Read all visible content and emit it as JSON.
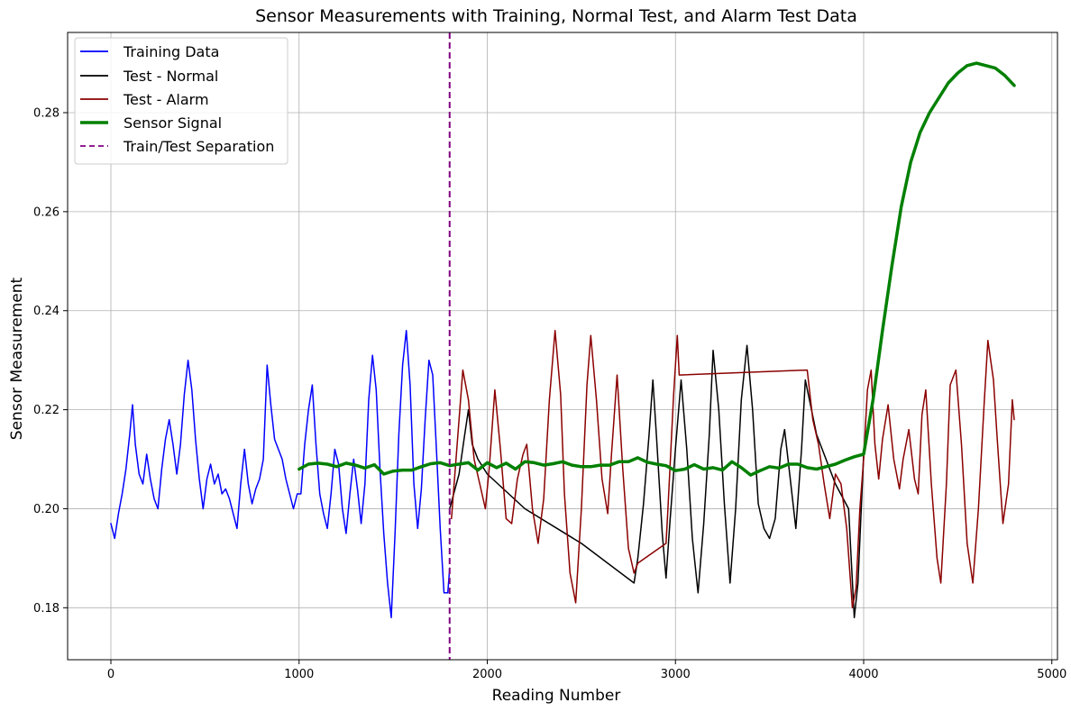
{
  "chart_data": {
    "type": "line",
    "title": "Sensor Measurements with Training, Normal Test, and Alarm Test Data",
    "xlabel": "Reading Number",
    "ylabel": "Sensor Measurement",
    "xlim": [
      -230,
      5030
    ],
    "ylim": [
      0.1695,
      0.2962
    ],
    "xticks": [
      0,
      1000,
      2000,
      3000,
      4000,
      5000
    ],
    "xtick_labels": [
      "0",
      "1000",
      "2000",
      "3000",
      "4000",
      "5000"
    ],
    "yticks": [
      0.18,
      0.2,
      0.22,
      0.24,
      0.26,
      0.28
    ],
    "ytick_labels": [
      "0.18",
      "0.20",
      "0.22",
      "0.24",
      "0.26",
      "0.28"
    ],
    "grid": true,
    "legend_position": "upper-left",
    "separator": {
      "name": "Train/Test Separation",
      "x": 1800,
      "color": "#800080",
      "style": "dashed"
    },
    "series": [
      {
        "name": "Training Data",
        "color": "#0000ff",
        "width": 1.5,
        "points": [
          [
            0,
            0.197
          ],
          [
            20,
            0.194
          ],
          [
            40,
            0.199
          ],
          [
            60,
            0.203
          ],
          [
            80,
            0.208
          ],
          [
            100,
            0.215
          ],
          [
            115,
            0.221
          ],
          [
            130,
            0.213
          ],
          [
            150,
            0.207
          ],
          [
            170,
            0.205
          ],
          [
            190,
            0.211
          ],
          [
            210,
            0.206
          ],
          [
            230,
            0.202
          ],
          [
            250,
            0.2
          ],
          [
            270,
            0.208
          ],
          [
            290,
            0.214
          ],
          [
            310,
            0.218
          ],
          [
            330,
            0.213
          ],
          [
            350,
            0.207
          ],
          [
            370,
            0.213
          ],
          [
            390,
            0.223
          ],
          [
            410,
            0.23
          ],
          [
            430,
            0.224
          ],
          [
            450,
            0.214
          ],
          [
            470,
            0.206
          ],
          [
            490,
            0.2
          ],
          [
            510,
            0.206
          ],
          [
            530,
            0.209
          ],
          [
            550,
            0.205
          ],
          [
            570,
            0.207
          ],
          [
            590,
            0.203
          ],
          [
            610,
            0.204
          ],
          [
            630,
            0.202
          ],
          [
            650,
            0.199
          ],
          [
            670,
            0.196
          ],
          [
            690,
            0.205
          ],
          [
            710,
            0.212
          ],
          [
            730,
            0.205
          ],
          [
            750,
            0.201
          ],
          [
            770,
            0.204
          ],
          [
            790,
            0.206
          ],
          [
            810,
            0.21
          ],
          [
            830,
            0.229
          ],
          [
            850,
            0.221
          ],
          [
            870,
            0.214
          ],
          [
            890,
            0.212
          ],
          [
            910,
            0.21
          ],
          [
            930,
            0.206
          ],
          [
            950,
            0.203
          ],
          [
            970,
            0.2
          ],
          [
            990,
            0.203
          ],
          [
            1010,
            0.203
          ],
          [
            1030,
            0.213
          ],
          [
            1050,
            0.22
          ],
          [
            1070,
            0.225
          ],
          [
            1090,
            0.213
          ],
          [
            1110,
            0.203
          ],
          [
            1130,
            0.199
          ],
          [
            1150,
            0.196
          ],
          [
            1170,
            0.203
          ],
          [
            1190,
            0.212
          ],
          [
            1210,
            0.209
          ],
          [
            1230,
            0.2
          ],
          [
            1250,
            0.195
          ],
          [
            1270,
            0.203
          ],
          [
            1290,
            0.21
          ],
          [
            1310,
            0.204
          ],
          [
            1330,
            0.197
          ],
          [
            1350,
            0.205
          ],
          [
            1370,
            0.222
          ],
          [
            1390,
            0.231
          ],
          [
            1410,
            0.224
          ],
          [
            1430,
            0.208
          ],
          [
            1450,
            0.195
          ],
          [
            1470,
            0.185
          ],
          [
            1490,
            0.178
          ],
          [
            1510,
            0.195
          ],
          [
            1530,
            0.215
          ],
          [
            1550,
            0.229
          ],
          [
            1570,
            0.236
          ],
          [
            1590,
            0.225
          ],
          [
            1610,
            0.205
          ],
          [
            1630,
            0.196
          ],
          [
            1650,
            0.204
          ],
          [
            1670,
            0.218
          ],
          [
            1690,
            0.23
          ],
          [
            1710,
            0.227
          ],
          [
            1730,
            0.212
          ],
          [
            1750,
            0.196
          ],
          [
            1770,
            0.183
          ],
          [
            1790,
            0.183
          ],
          [
            1800,
            0.188
          ]
        ]
      },
      {
        "name": "Test - Normal",
        "color": "#000000",
        "width": 1.5,
        "points": [
          [
            1800,
            0.2
          ],
          [
            1850,
            0.207
          ],
          [
            1880,
            0.215
          ],
          [
            1900,
            0.22
          ],
          [
            1920,
            0.213
          ],
          [
            1950,
            0.21
          ],
          [
            2000,
            0.207
          ],
          [
            2200,
            0.2
          ],
          [
            2500,
            0.193
          ],
          [
            2780,
            0.185
          ],
          [
            2800,
            0.19
          ],
          [
            2830,
            0.201
          ],
          [
            2860,
            0.215
          ],
          [
            2880,
            0.226
          ],
          [
            2900,
            0.214
          ],
          [
            2930,
            0.195
          ],
          [
            2950,
            0.186
          ],
          [
            2970,
            0.197
          ],
          [
            3000,
            0.212
          ],
          [
            3030,
            0.226
          ],
          [
            3060,
            0.212
          ],
          [
            3090,
            0.194
          ],
          [
            3120,
            0.183
          ],
          [
            3150,
            0.197
          ],
          [
            3180,
            0.215
          ],
          [
            3200,
            0.232
          ],
          [
            3230,
            0.22
          ],
          [
            3260,
            0.201
          ],
          [
            3290,
            0.185
          ],
          [
            3320,
            0.2
          ],
          [
            3350,
            0.222
          ],
          [
            3380,
            0.233
          ],
          [
            3410,
            0.22
          ],
          [
            3440,
            0.201
          ],
          [
            3470,
            0.196
          ],
          [
            3500,
            0.194
          ],
          [
            3530,
            0.198
          ],
          [
            3560,
            0.212
          ],
          [
            3580,
            0.216
          ],
          [
            3610,
            0.206
          ],
          [
            3640,
            0.196
          ],
          [
            3670,
            0.212
          ],
          [
            3690,
            0.226
          ],
          [
            3750,
            0.215
          ],
          [
            3850,
            0.205
          ],
          [
            3920,
            0.2
          ],
          [
            3950,
            0.178
          ],
          [
            3970,
            0.185
          ],
          [
            4000,
            0.211
          ]
        ]
      },
      {
        "name": "Test - Alarm",
        "color": "#8b0000",
        "width": 1.5,
        "points": [
          [
            1810,
            0.198
          ],
          [
            1840,
            0.213
          ],
          [
            1870,
            0.228
          ],
          [
            1900,
            0.222
          ],
          [
            1930,
            0.21
          ],
          [
            1960,
            0.205
          ],
          [
            1990,
            0.2
          ],
          [
            2010,
            0.208
          ],
          [
            2040,
            0.224
          ],
          [
            2070,
            0.212
          ],
          [
            2100,
            0.198
          ],
          [
            2130,
            0.197
          ],
          [
            2160,
            0.206
          ],
          [
            2190,
            0.211
          ],
          [
            2210,
            0.213
          ],
          [
            2240,
            0.2
          ],
          [
            2270,
            0.193
          ],
          [
            2300,
            0.202
          ],
          [
            2330,
            0.222
          ],
          [
            2360,
            0.236
          ],
          [
            2390,
            0.223
          ],
          [
            2410,
            0.203
          ],
          [
            2440,
            0.187
          ],
          [
            2470,
            0.181
          ],
          [
            2500,
            0.2
          ],
          [
            2530,
            0.225
          ],
          [
            2550,
            0.235
          ],
          [
            2580,
            0.222
          ],
          [
            2610,
            0.206
          ],
          [
            2640,
            0.199
          ],
          [
            2660,
            0.211
          ],
          [
            2690,
            0.227
          ],
          [
            2720,
            0.208
          ],
          [
            2750,
            0.192
          ],
          [
            2780,
            0.187
          ],
          [
            2800,
            0.189
          ],
          [
            2950,
            0.193
          ],
          [
            2960,
            0.2
          ],
          [
            2990,
            0.223
          ],
          [
            3010,
            0.235
          ],
          [
            3020,
            0.227
          ],
          [
            3700,
            0.228
          ],
          [
            3730,
            0.218
          ],
          [
            3760,
            0.213
          ],
          [
            3790,
            0.205
          ],
          [
            3820,
            0.198
          ],
          [
            3850,
            0.207
          ],
          [
            3880,
            0.205
          ],
          [
            3910,
            0.196
          ],
          [
            3940,
            0.18
          ],
          [
            3960,
            0.184
          ],
          [
            3980,
            0.2
          ],
          [
            4000,
            0.21
          ],
          [
            4020,
            0.224
          ],
          [
            4040,
            0.228
          ],
          [
            4060,
            0.213
          ],
          [
            4080,
            0.206
          ],
          [
            4100,
            0.214
          ],
          [
            4130,
            0.221
          ],
          [
            4160,
            0.21
          ],
          [
            4190,
            0.204
          ],
          [
            4210,
            0.21
          ],
          [
            4240,
            0.216
          ],
          [
            4270,
            0.206
          ],
          [
            4290,
            0.203
          ],
          [
            4310,
            0.219
          ],
          [
            4330,
            0.224
          ],
          [
            4360,
            0.205
          ],
          [
            4390,
            0.19
          ],
          [
            4410,
            0.185
          ],
          [
            4440,
            0.205
          ],
          [
            4460,
            0.225
          ],
          [
            4490,
            0.228
          ],
          [
            4520,
            0.213
          ],
          [
            4550,
            0.193
          ],
          [
            4580,
            0.185
          ],
          [
            4610,
            0.2
          ],
          [
            4640,
            0.221
          ],
          [
            4660,
            0.234
          ],
          [
            4690,
            0.226
          ],
          [
            4710,
            0.214
          ],
          [
            4740,
            0.197
          ],
          [
            4770,
            0.205
          ],
          [
            4790,
            0.222
          ],
          [
            4800,
            0.218
          ]
        ]
      },
      {
        "name": "Sensor Signal",
        "color": "#008000",
        "width": 3.5,
        "points": [
          [
            1000,
            0.208
          ],
          [
            1050,
            0.209
          ],
          [
            1100,
            0.2092
          ],
          [
            1150,
            0.209
          ],
          [
            1200,
            0.2085
          ],
          [
            1250,
            0.2092
          ],
          [
            1300,
            0.2088
          ],
          [
            1350,
            0.2082
          ],
          [
            1400,
            0.2089
          ],
          [
            1450,
            0.207
          ],
          [
            1500,
            0.2076
          ],
          [
            1550,
            0.2078
          ],
          [
            1600,
            0.2078
          ],
          [
            1650,
            0.2085
          ],
          [
            1700,
            0.2091
          ],
          [
            1750,
            0.2093
          ],
          [
            1800,
            0.2087
          ],
          [
            1850,
            0.209
          ],
          [
            1900,
            0.2093
          ],
          [
            1950,
            0.2078
          ],
          [
            2000,
            0.2093
          ],
          [
            2050,
            0.2083
          ],
          [
            2100,
            0.2092
          ],
          [
            2150,
            0.208
          ],
          [
            2200,
            0.2095
          ],
          [
            2250,
            0.2093
          ],
          [
            2300,
            0.2088
          ],
          [
            2350,
            0.2091
          ],
          [
            2400,
            0.2095
          ],
          [
            2450,
            0.2088
          ],
          [
            2500,
            0.2085
          ],
          [
            2550,
            0.2085
          ],
          [
            2600,
            0.2088
          ],
          [
            2650,
            0.2088
          ],
          [
            2700,
            0.2095
          ],
          [
            2750,
            0.2095
          ],
          [
            2800,
            0.2103
          ],
          [
            2850,
            0.2094
          ],
          [
            2900,
            0.209
          ],
          [
            2950,
            0.2087
          ],
          [
            3000,
            0.2077
          ],
          [
            3050,
            0.208
          ],
          [
            3100,
            0.2089
          ],
          [
            3150,
            0.208
          ],
          [
            3200,
            0.2083
          ],
          [
            3250,
            0.2078
          ],
          [
            3300,
            0.2095
          ],
          [
            3350,
            0.2083
          ],
          [
            3400,
            0.2068
          ],
          [
            3450,
            0.2077
          ],
          [
            3500,
            0.2085
          ],
          [
            3550,
            0.2082
          ],
          [
            3600,
            0.209
          ],
          [
            3650,
            0.209
          ],
          [
            3700,
            0.2083
          ],
          [
            3750,
            0.208
          ],
          [
            3800,
            0.2085
          ],
          [
            3850,
            0.209
          ],
          [
            3900,
            0.2098
          ],
          [
            3950,
            0.2105
          ],
          [
            4000,
            0.211
          ],
          [
            4050,
            0.222
          ],
          [
            4100,
            0.236
          ],
          [
            4150,
            0.249
          ],
          [
            4200,
            0.261
          ],
          [
            4250,
            0.27
          ],
          [
            4300,
            0.276
          ],
          [
            4350,
            0.28
          ],
          [
            4400,
            0.283
          ],
          [
            4450,
            0.286
          ],
          [
            4500,
            0.288
          ],
          [
            4550,
            0.2895
          ],
          [
            4600,
            0.29
          ],
          [
            4650,
            0.2895
          ],
          [
            4700,
            0.289
          ],
          [
            4750,
            0.2875
          ],
          [
            4800,
            0.2855
          ]
        ]
      }
    ]
  }
}
